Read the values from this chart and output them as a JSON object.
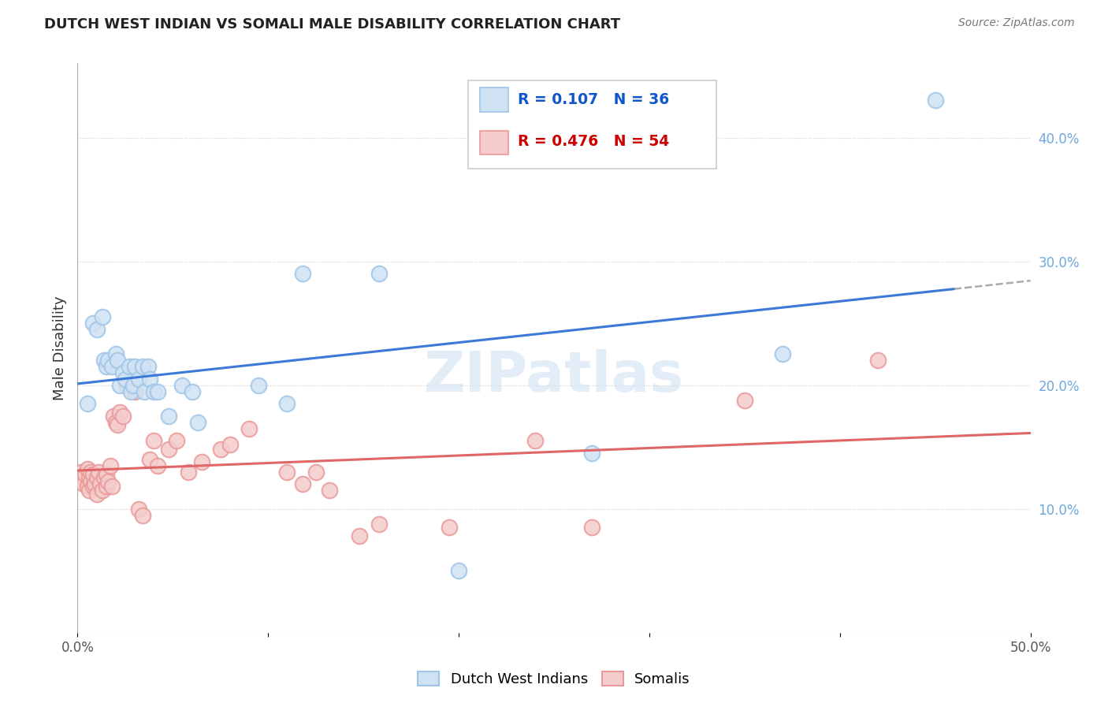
{
  "title": "DUTCH WEST INDIAN VS SOMALI MALE DISABILITY CORRELATION CHART",
  "source": "Source: ZipAtlas.com",
  "xlabel": "",
  "ylabel": "Male Disability",
  "xlim": [
    0.0,
    0.5
  ],
  "ylim": [
    0.0,
    0.46
  ],
  "xticks": [
    0.0,
    0.1,
    0.2,
    0.3,
    0.4,
    0.5
  ],
  "yticks": [
    0.1,
    0.2,
    0.3,
    0.4
  ],
  "ytick_labels": [
    "10.0%",
    "20.0%",
    "30.0%",
    "40.0%"
  ],
  "xtick_labels": [
    "0.0%",
    "",
    "",
    "",
    "",
    "50.0%"
  ],
  "legend_labels": [
    "Dutch West Indians",
    "Somalis"
  ],
  "r_blue": "R = 0.107",
  "n_blue": "N = 36",
  "r_pink": "R = 0.476",
  "n_pink": "N = 54",
  "blue_fill": "#cfe2f3",
  "blue_edge": "#9fc5e8",
  "pink_fill": "#f4cccc",
  "pink_edge": "#ea9999",
  "blue_line_color": "#3c78d8",
  "pink_line_color": "#e06666",
  "blue_dots": [
    [
      0.005,
      0.185
    ],
    [
      0.008,
      0.25
    ],
    [
      0.01,
      0.245
    ],
    [
      0.013,
      0.255
    ],
    [
      0.014,
      0.22
    ],
    [
      0.015,
      0.215
    ],
    [
      0.016,
      0.22
    ],
    [
      0.018,
      0.215
    ],
    [
      0.02,
      0.225
    ],
    [
      0.021,
      0.22
    ],
    [
      0.022,
      0.2
    ],
    [
      0.024,
      0.21
    ],
    [
      0.025,
      0.205
    ],
    [
      0.027,
      0.215
    ],
    [
      0.028,
      0.195
    ],
    [
      0.029,
      0.2
    ],
    [
      0.03,
      0.215
    ],
    [
      0.032,
      0.205
    ],
    [
      0.034,
      0.215
    ],
    [
      0.035,
      0.195
    ],
    [
      0.037,
      0.215
    ],
    [
      0.038,
      0.205
    ],
    [
      0.04,
      0.195
    ],
    [
      0.042,
      0.195
    ],
    [
      0.048,
      0.175
    ],
    [
      0.055,
      0.2
    ],
    [
      0.06,
      0.195
    ],
    [
      0.063,
      0.17
    ],
    [
      0.095,
      0.2
    ],
    [
      0.11,
      0.185
    ],
    [
      0.118,
      0.29
    ],
    [
      0.158,
      0.29
    ],
    [
      0.2,
      0.05
    ],
    [
      0.27,
      0.145
    ],
    [
      0.37,
      0.225
    ],
    [
      0.45,
      0.43
    ]
  ],
  "pink_dots": [
    [
      0.002,
      0.13
    ],
    [
      0.003,
      0.125
    ],
    [
      0.003,
      0.12
    ],
    [
      0.004,
      0.128
    ],
    [
      0.005,
      0.118
    ],
    [
      0.005,
      0.132
    ],
    [
      0.006,
      0.125
    ],
    [
      0.006,
      0.115
    ],
    [
      0.007,
      0.122
    ],
    [
      0.007,
      0.13
    ],
    [
      0.008,
      0.118
    ],
    [
      0.008,
      0.128
    ],
    [
      0.009,
      0.12
    ],
    [
      0.01,
      0.112
    ],
    [
      0.01,
      0.125
    ],
    [
      0.011,
      0.13
    ],
    [
      0.012,
      0.12
    ],
    [
      0.013,
      0.115
    ],
    [
      0.014,
      0.125
    ],
    [
      0.015,
      0.118
    ],
    [
      0.015,
      0.128
    ],
    [
      0.016,
      0.122
    ],
    [
      0.017,
      0.135
    ],
    [
      0.018,
      0.118
    ],
    [
      0.019,
      0.175
    ],
    [
      0.02,
      0.17
    ],
    [
      0.021,
      0.168
    ],
    [
      0.022,
      0.178
    ],
    [
      0.024,
      0.175
    ],
    [
      0.026,
      0.2
    ],
    [
      0.03,
      0.195
    ],
    [
      0.032,
      0.1
    ],
    [
      0.034,
      0.095
    ],
    [
      0.038,
      0.14
    ],
    [
      0.04,
      0.155
    ],
    [
      0.042,
      0.135
    ],
    [
      0.048,
      0.148
    ],
    [
      0.052,
      0.155
    ],
    [
      0.058,
      0.13
    ],
    [
      0.065,
      0.138
    ],
    [
      0.075,
      0.148
    ],
    [
      0.08,
      0.152
    ],
    [
      0.09,
      0.165
    ],
    [
      0.11,
      0.13
    ],
    [
      0.118,
      0.12
    ],
    [
      0.125,
      0.13
    ],
    [
      0.132,
      0.115
    ],
    [
      0.148,
      0.078
    ],
    [
      0.158,
      0.088
    ],
    [
      0.195,
      0.085
    ],
    [
      0.24,
      0.155
    ],
    [
      0.27,
      0.085
    ],
    [
      0.35,
      0.188
    ],
    [
      0.42,
      0.22
    ]
  ],
  "watermark": "ZIPatlas",
  "background_color": "#ffffff",
  "grid_color": "#cccccc",
  "legend_r_color_blue": "#1155cc",
  "legend_n_color_blue": "#38761d",
  "legend_r_color_pink": "#cc0000",
  "legend_n_color_pink": "#38761d"
}
